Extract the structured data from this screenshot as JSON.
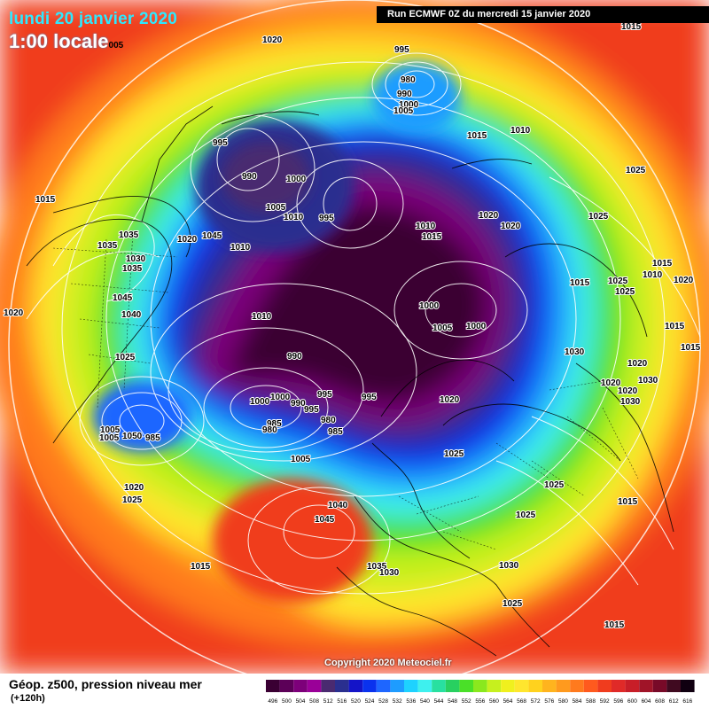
{
  "header": {
    "date": "lundi 20 janvier 2020",
    "time": "1:00 locale",
    "time_suffix": "005",
    "run": "Run ECMWF 0Z du mercredi 15 janvier 2020"
  },
  "footer": {
    "title": "Géop. z500, pression niveau mer",
    "subtitle": "(+120h)",
    "copyright": "Copyright 2020 Meteociel.fr"
  },
  "legend": {
    "values": [
      "496",
      "500",
      "504",
      "508",
      "512",
      "516",
      "520",
      "524",
      "528",
      "532",
      "536",
      "540",
      "544",
      "548",
      "552",
      "556",
      "560",
      "564",
      "568",
      "572",
      "576",
      "580",
      "584",
      "588",
      "592",
      "596",
      "600",
      "604",
      "608",
      "612",
      "616"
    ],
    "colors": [
      "#3a0033",
      "#5c0058",
      "#7d007a",
      "#9a0098",
      "#4a2a70",
      "#2a2f8f",
      "#1414c8",
      "#0a32ee",
      "#1e66ff",
      "#1e9cff",
      "#1ed2ff",
      "#3ef0ee",
      "#28e0a0",
      "#28d060",
      "#4ae028",
      "#8ae81e",
      "#c6f01e",
      "#f0f01e",
      "#ffe62e",
      "#ffd21e",
      "#ffb41e",
      "#ff9a1e",
      "#ff7a1e",
      "#ff5a1e",
      "#f03c1e",
      "#e02a28",
      "#c81e28",
      "#a01428",
      "#780a28",
      "#400a20",
      "#100010"
    ]
  },
  "pressure_labels": [
    {
      "v": "995"
    },
    {
      "v": "1020"
    },
    {
      "v": "980"
    },
    {
      "v": "990"
    },
    {
      "v": "1000"
    },
    {
      "v": "1005"
    },
    {
      "v": "1010"
    },
    {
      "v": "1015"
    },
    {
      "v": "1025"
    },
    {
      "v": "1035"
    },
    {
      "v": "1030"
    },
    {
      "v": "1045"
    },
    {
      "v": "1040"
    },
    {
      "v": "985"
    },
    {
      "v": "1050"
    }
  ]
}
